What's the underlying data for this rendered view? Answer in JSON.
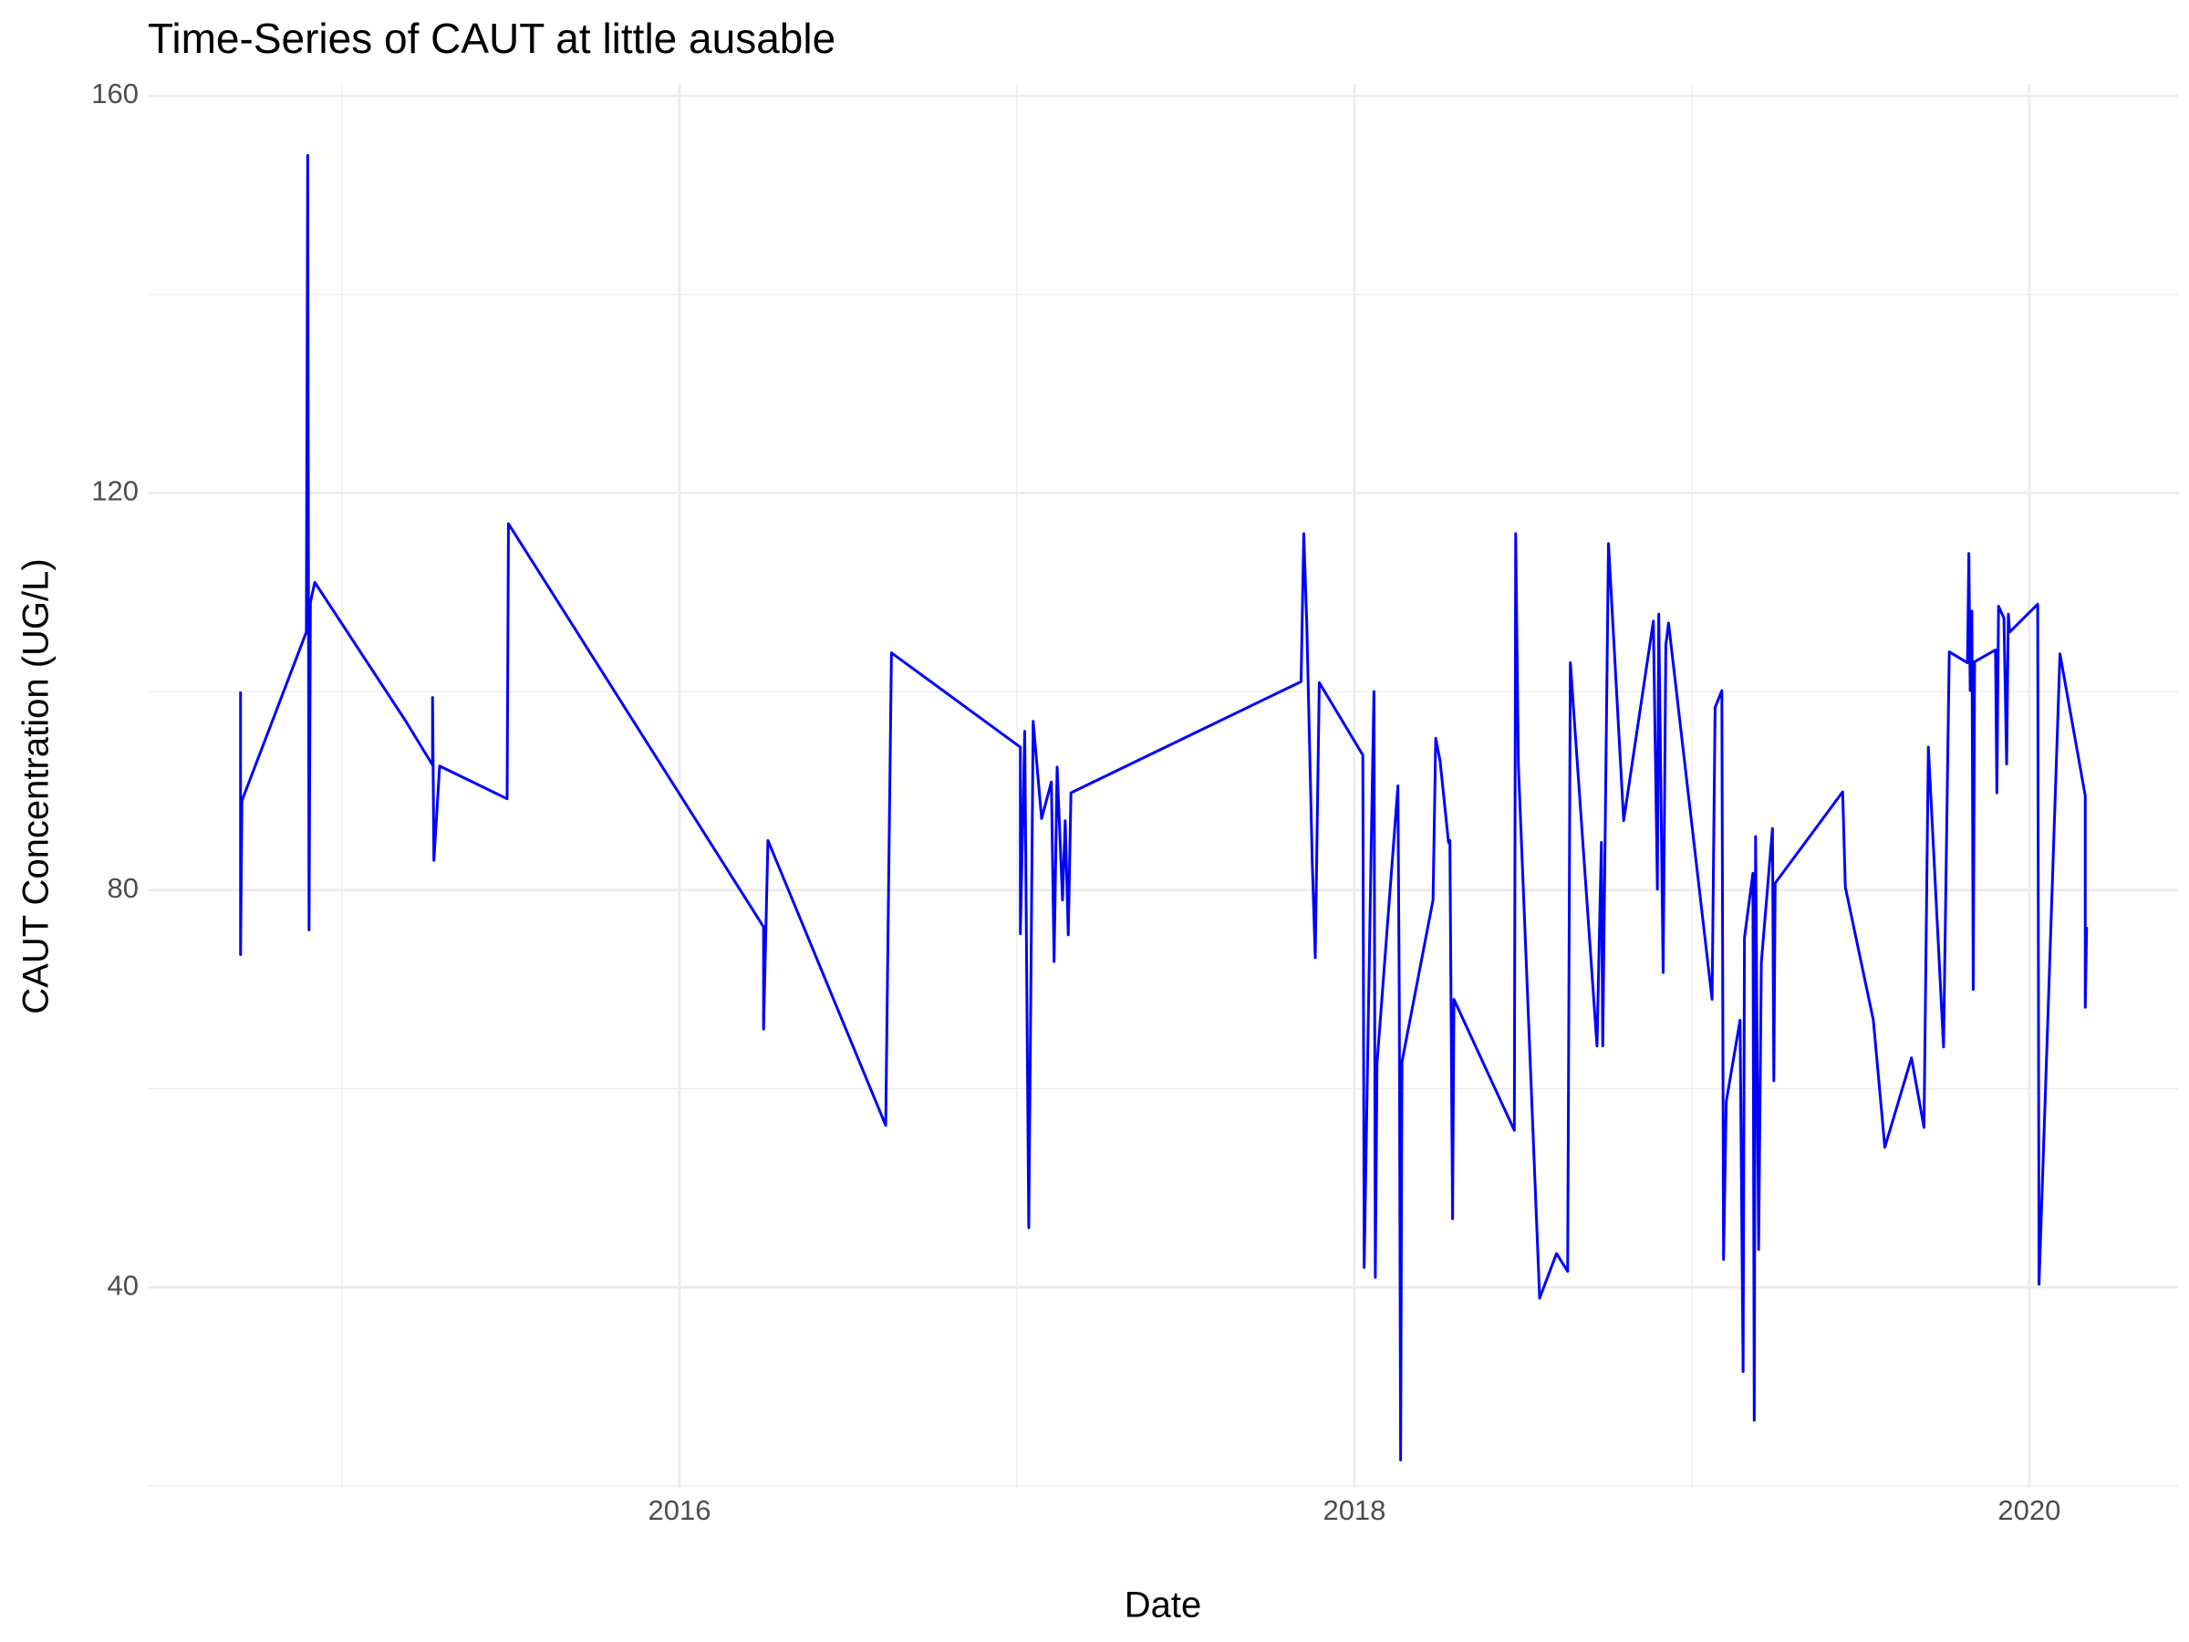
{
  "chart_data": {
    "type": "line",
    "title": "Time-Series of CAUT at little ausable",
    "xlabel": "Date",
    "ylabel": "CAUT Concentration (UG/L)",
    "color": "#0000ff",
    "grid": true,
    "xlim": [
      2014.424,
      2020.441
    ],
    "xticks": [
      2016,
      2018,
      2020
    ],
    "ylim": [
      19.8,
      161.2
    ],
    "yticks": [
      40,
      80,
      120,
      160
    ],
    "x": [
      2014.699,
      2014.699,
      2014.703,
      2014.894,
      2014.898,
      2014.902,
      2014.906,
      2014.919,
      2015.189,
      2015.268,
      2015.268,
      2015.272,
      2015.289,
      2015.489,
      2015.493,
      2016.249,
      2016.249,
      2016.262,
      2016.611,
      2016.628,
      2017.01,
      2017.01,
      2017.023,
      2017.035,
      2017.048,
      2017.073,
      2017.102,
      2017.11,
      2017.119,
      2017.135,
      2017.143,
      2017.152,
      2017.16,
      2017.842,
      2017.85,
      2017.859,
      2017.875,
      2017.884,
      2017.896,
      2018.025,
      2018.029,
      2018.05,
      2018.058,
      2018.062,
      2018.067,
      2018.129,
      2018.133,
      2018.137,
      2018.141,
      2018.233,
      2018.241,
      2018.254,
      2018.279,
      2018.283,
      2018.291,
      2018.295,
      2018.474,
      2018.478,
      2018.486,
      2018.549,
      2018.599,
      2018.632,
      2018.64,
      2018.719,
      2018.732,
      2018.736,
      2018.753,
      2018.798,
      2018.886,
      2018.898,
      2018.902,
      2018.915,
      2018.923,
      2018.931,
      2019.06,
      2019.069,
      2019.089,
      2019.094,
      2019.102,
      2019.143,
      2019.152,
      2019.156,
      2019.181,
      2019.185,
      2019.189,
      2019.198,
      2019.206,
      2019.239,
      2019.243,
      2019.247,
      2019.447,
      2019.455,
      2019.538,
      2019.572,
      2019.651,
      2019.688,
      2019.701,
      2019.746,
      2019.763,
      2019.817,
      2019.821,
      2019.825,
      2019.83,
      2019.834,
      2019.838,
      2019.9,
      2019.904,
      2019.909,
      2019.925,
      2019.933,
      2019.938,
      2019.942,
      2020.025,
      2020.029,
      2020.091,
      2020.166,
      2020.166,
      2020.17
    ],
    "values": [
      100,
      73.5,
      89,
      106,
      154,
      76,
      109,
      111,
      97,
      92.6,
      99.4,
      83,
      92.5,
      89.2,
      116.9,
      76.3,
      66,
      85,
      56.3,
      103.9,
      94.4,
      75.6,
      96,
      46,
      97,
      87.2,
      90.9,
      72.8,
      92.4,
      79,
      87,
      75.5,
      89.8,
      101,
      115.9,
      106.7,
      83,
      73.2,
      100.9,
      93.6,
      42,
      84.8,
      100,
      41,
      62.5,
      90.5,
      69.3,
      22.6,
      62.7,
      79,
      95.3,
      93,
      84.8,
      85,
      46.9,
      69,
      55.8,
      115.9,
      92.6,
      38.9,
      43.4,
      41.6,
      102.9,
      64.3,
      84.8,
      64.3,
      114.9,
      87,
      107.1,
      80.1,
      107.8,
      71.7,
      104.7,
      106.9,
      69,
      98.4,
      100.1,
      42.8,
      58.7,
      66.9,
      31.5,
      75.2,
      81.7,
      26.6,
      85.4,
      43.8,
      72.7,
      86.2,
      60.8,
      80.7,
      89.9,
      80.3,
      66.9,
      54.1,
      63.1,
      56.1,
      94.4,
      64.2,
      104,
      102.9,
      113.9,
      100.1,
      108.1,
      70,
      103,
      104.2,
      89.8,
      108.6,
      107.4,
      92.7,
      107.8,
      106,
      108.8,
      40.3,
      103.8,
      89.5,
      68.2,
      76.3
    ]
  }
}
